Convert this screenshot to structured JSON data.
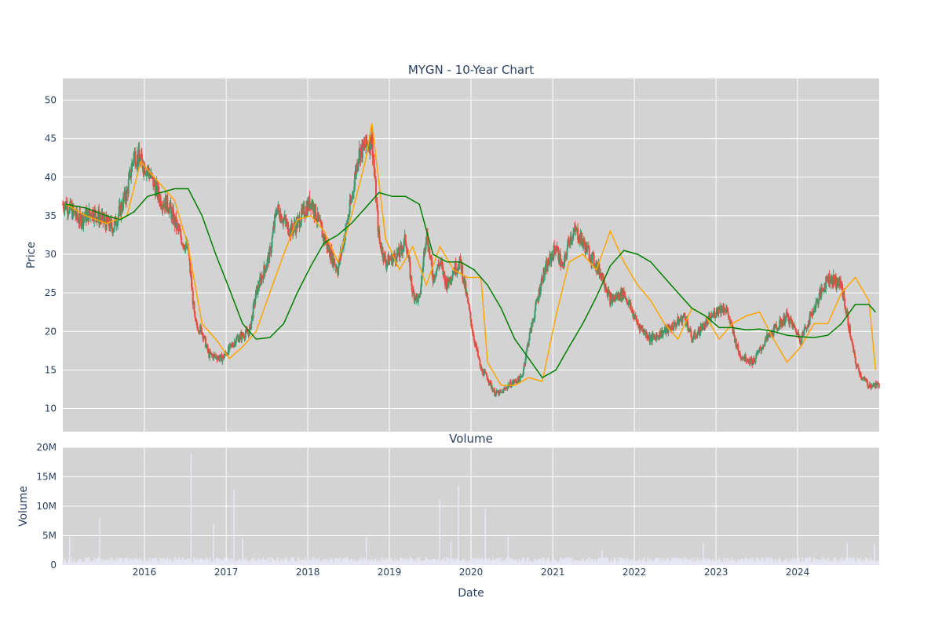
{
  "page": {
    "main_title": "MYGN - 10-Year Chart",
    "volume_title": "Volume"
  },
  "colors": {
    "plot_bg": "#d3d3d3",
    "grid": "#ffffff",
    "candle_up": "#3d9970",
    "candle_down": "#e74c3c",
    "ma_short": "#ffa500",
    "ma_long": "#008000",
    "volume_bar": "#e6e6f5",
    "text": "#2a3f5f"
  },
  "chart_data": [
    {
      "type": "candlestick",
      "title": "MYGN - 10-Year Chart",
      "xlabel": "",
      "ylabel": "Price",
      "x_ticks": [
        "2016",
        "2017",
        "2018",
        "2019",
        "2020",
        "2021",
        "2022",
        "2023",
        "2024"
      ],
      "y_ticks": [
        10,
        15,
        20,
        25,
        30,
        35,
        40,
        45,
        50
      ],
      "xlim": [
        "2015-01-01",
        "2024-12-31"
      ],
      "ylim": [
        7,
        52.8
      ],
      "grid": true,
      "close_series_approx": {
        "x": [
          "2015-01",
          "2015-03",
          "2015-05",
          "2015-07",
          "2015-08",
          "2015-10",
          "2015-11",
          "2016-01",
          "2016-03",
          "2016-04",
          "2016-06",
          "2016-07",
          "2016-08",
          "2016-09",
          "2016-10",
          "2016-12",
          "2017-02",
          "2017-03",
          "2017-04",
          "2017-05",
          "2017-07",
          "2017-08",
          "2017-10",
          "2017-11",
          "2018-01",
          "2018-03",
          "2018-05",
          "2018-07",
          "2018-08",
          "2018-10",
          "2018-11",
          "2018-12",
          "2019-02",
          "2019-03",
          "2019-04",
          "2019-05",
          "2019-06",
          "2019-07",
          "2019-08",
          "2019-09",
          "2019-10",
          "2019-11",
          "2020-01",
          "2020-02",
          "2020-03",
          "2020-04",
          "2020-05",
          "2020-06",
          "2020-08",
          "2020-09",
          "2020-11",
          "2020-12",
          "2021-01",
          "2021-02",
          "2021-03",
          "2021-04",
          "2021-06",
          "2021-08",
          "2021-09",
          "2021-11",
          "2022-01",
          "2022-03",
          "2022-05",
          "2022-06",
          "2022-08",
          "2022-09",
          "2022-11",
          "2023-01",
          "2023-02",
          "2023-04",
          "2023-06",
          "2023-08",
          "2023-10",
          "2023-11",
          "2024-01",
          "2024-03",
          "2024-05",
          "2024-07",
          "2024-09",
          "2024-10",
          "2024-11",
          "2024-12"
        ],
        "y": [
          36.5,
          34.5,
          35.5,
          34,
          33.5,
          38,
          43,
          41,
          37,
          36.5,
          32,
          30.5,
          21,
          20,
          17,
          16.5,
          19,
          19.5,
          20,
          25,
          30,
          36,
          33,
          34,
          37,
          32,
          28,
          37,
          43,
          45,
          32,
          29,
          30,
          32,
          25,
          24,
          33,
          27,
          29,
          26,
          28,
          29,
          19,
          15,
          14,
          12,
          12,
          13,
          14,
          19,
          27,
          29,
          31,
          28,
          32,
          33,
          30,
          27,
          24,
          25,
          21,
          19,
          20,
          20.5,
          22,
          19,
          21,
          23,
          23,
          17,
          16,
          19,
          21,
          22,
          19,
          23,
          27,
          26,
          16,
          14,
          13,
          13
        ]
      },
      "series": [
        {
          "name": "",
          "style": "moving-average-short",
          "x": [
            "2015-01",
            "2015-04",
            "2015-07",
            "2015-10",
            "2015-12",
            "2016-03",
            "2016-05",
            "2016-07",
            "2016-09",
            "2016-11",
            "2017-01",
            "2017-03",
            "2017-05",
            "2017-07",
            "2017-09",
            "2017-11",
            "2018-01",
            "2018-03",
            "2018-05",
            "2018-07",
            "2018-09",
            "2018-10",
            "2018-12",
            "2019-02",
            "2019-04",
            "2019-06",
            "2019-08",
            "2019-10",
            "2019-12",
            "2020-02",
            "2020-03",
            "2020-05",
            "2020-07",
            "2020-09",
            "2020-11",
            "2021-01",
            "2021-03",
            "2021-05",
            "2021-07",
            "2021-09",
            "2021-11",
            "2022-01",
            "2022-03",
            "2022-05",
            "2022-07",
            "2022-09",
            "2022-11",
            "2023-01",
            "2023-03",
            "2023-05",
            "2023-07",
            "2023-09",
            "2023-11",
            "2024-01",
            "2024-03",
            "2024-05",
            "2024-07",
            "2024-09",
            "2024-11",
            "2024-12"
          ],
          "values": [
            36.5,
            35,
            34,
            35,
            42,
            39,
            37,
            31,
            21,
            19,
            16.5,
            18,
            20,
            25,
            30,
            34.5,
            35,
            33,
            29,
            35,
            42,
            47,
            32,
            28,
            31,
            26,
            31,
            28,
            27,
            27,
            16,
            13,
            13,
            14,
            13.5,
            22,
            29,
            30,
            28,
            33,
            29,
            26,
            24,
            21,
            19,
            23,
            22,
            19,
            21,
            22,
            22.5,
            19,
            16,
            18,
            21,
            21,
            25,
            27,
            24,
            15
          ]
        },
        {
          "name": "",
          "style": "moving-average-long",
          "x": [
            "2015-01",
            "2015-04",
            "2015-07",
            "2015-09",
            "2015-11",
            "2016-01",
            "2016-03",
            "2016-05",
            "2016-07",
            "2016-09",
            "2016-11",
            "2017-01",
            "2017-03",
            "2017-05",
            "2017-07",
            "2017-09",
            "2017-11",
            "2018-01",
            "2018-03",
            "2018-05",
            "2018-07",
            "2018-09",
            "2018-11",
            "2019-01",
            "2019-03",
            "2019-05",
            "2019-07",
            "2019-09",
            "2019-11",
            "2020-01",
            "2020-03",
            "2020-05",
            "2020-07",
            "2020-09",
            "2020-11",
            "2021-01",
            "2021-03",
            "2021-05",
            "2021-07",
            "2021-09",
            "2021-11",
            "2022-01",
            "2022-03",
            "2022-05",
            "2022-07",
            "2022-09",
            "2022-11",
            "2023-01",
            "2023-03",
            "2023-05",
            "2023-07",
            "2023-09",
            "2023-11",
            "2024-01",
            "2024-03",
            "2024-05",
            "2024-07",
            "2024-09",
            "2024-11",
            "2024-12"
          ],
          "values": [
            36.5,
            36,
            35,
            34.5,
            35.5,
            37.5,
            38,
            38.5,
            38.5,
            35,
            30,
            25.5,
            21,
            19,
            19.2,
            21,
            25,
            28.5,
            31.5,
            32.5,
            34,
            36,
            38,
            37.5,
            37.5,
            36.5,
            30,
            29,
            29,
            28,
            26,
            23,
            19,
            16.5,
            14,
            15,
            18,
            21,
            24.5,
            28.5,
            30.5,
            30,
            29,
            27,
            25,
            23,
            22,
            20.5,
            20.5,
            20.2,
            20.3,
            20,
            19.5,
            19.3,
            19.2,
            19.5,
            21,
            23.5,
            23.5,
            22.5
          ]
        }
      ]
    },
    {
      "type": "bar",
      "title": "Volume",
      "xlabel": "Date",
      "ylabel": "Volume",
      "x_ticks": [
        "2016",
        "2017",
        "2018",
        "2019",
        "2020",
        "2021",
        "2022",
        "2023",
        "2024"
      ],
      "y_ticks": [
        0,
        5000000,
        10000000,
        15000000,
        20000000
      ],
      "y_tick_labels": [
        "0",
        "5M",
        "10M",
        "15M",
        "20M"
      ],
      "ylim": [
        0,
        20000000
      ],
      "grid": true,
      "baseline": 800000,
      "spikes": [
        {
          "x": "2015-02-01",
          "value": 4800000
        },
        {
          "x": "2015-06-15",
          "value": 8000000
        },
        {
          "x": "2016-07-28",
          "value": 19000000
        },
        {
          "x": "2016-11-05",
          "value": 7000000
        },
        {
          "x": "2017-02-05",
          "value": 12800000
        },
        {
          "x": "2017-03-15",
          "value": 4500000
        },
        {
          "x": "2018-09-20",
          "value": 4800000
        },
        {
          "x": "2019-08-14",
          "value": 11000000
        },
        {
          "x": "2019-10-03",
          "value": 4000000
        },
        {
          "x": "2019-11-06",
          "value": 13500000
        },
        {
          "x": "2020-03-05",
          "value": 9500000
        },
        {
          "x": "2020-06-15",
          "value": 5200000
        },
        {
          "x": "2021-08-10",
          "value": 2500000
        },
        {
          "x": "2022-11-05",
          "value": 3800000
        },
        {
          "x": "2024-08-10",
          "value": 3800000
        },
        {
          "x": "2024-12-10",
          "value": 3600000
        }
      ]
    }
  ]
}
